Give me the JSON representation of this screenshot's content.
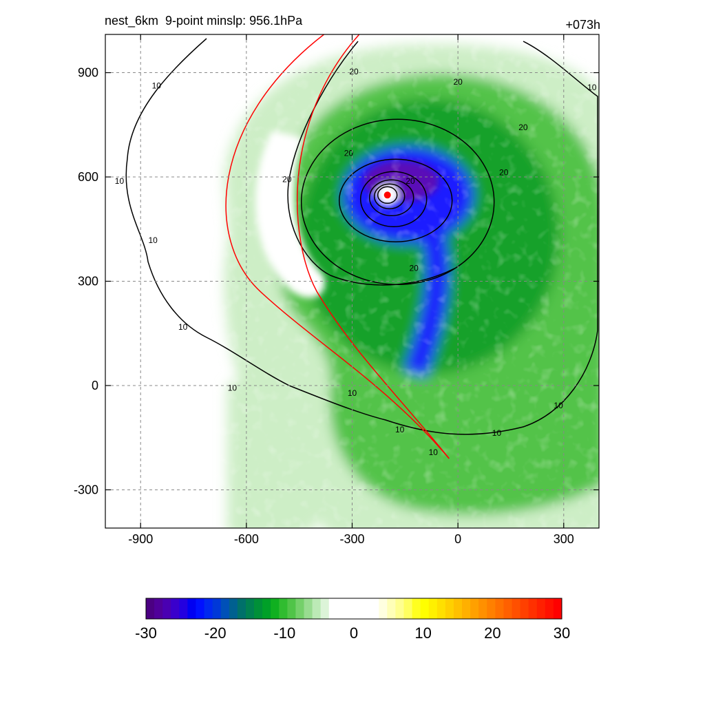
{
  "header": {
    "title": "nest_6km  9-point minslp: 956.1hPa",
    "forecast_hour": "+073h"
  },
  "chart_data": {
    "type": "heatmap",
    "title": "nest_6km  9-point minslp: 956.1hPa",
    "annotation": "+073h",
    "xlim": [
      -1000,
      400
    ],
    "ylim": [
      -410,
      1010
    ],
    "xticks": [
      -900,
      -600,
      -300,
      0,
      300
    ],
    "yticks": [
      -300,
      0,
      300,
      600,
      900
    ],
    "grid": true,
    "center": {
      "x": -200,
      "y": 548
    },
    "contour_labels": [
      {
        "text": "10",
        "x": -855,
        "y": 855
      },
      {
        "text": "10",
        "x": -960,
        "y": 580
      },
      {
        "text": "10",
        "x": -865,
        "y": 410
      },
      {
        "text": "10",
        "x": -780,
        "y": 160
      },
      {
        "text": "10",
        "x": -640,
        "y": -15
      },
      {
        "text": "10",
        "x": -300,
        "y": -30
      },
      {
        "text": "10",
        "x": -165,
        "y": -135
      },
      {
        "text": "10",
        "x": -70,
        "y": -200
      },
      {
        "text": "10",
        "x": 110,
        "y": -145
      },
      {
        "text": "10",
        "x": 285,
        "y": -65
      },
      {
        "text": "10",
        "x": 380,
        "y": 850
      },
      {
        "text": "20",
        "x": -295,
        "y": 895
      },
      {
        "text": "20",
        "x": 0,
        "y": 865
      },
      {
        "text": "20",
        "x": -485,
        "y": 585
      },
      {
        "text": "20",
        "x": -310,
        "y": 660
      },
      {
        "text": "20",
        "x": 185,
        "y": 735
      },
      {
        "text": "20",
        "x": 130,
        "y": 605
      },
      {
        "text": "20",
        "x": -135,
        "y": 580
      },
      {
        "text": "20",
        "x": -125,
        "y": 330
      }
    ],
    "colorbar": {
      "min": -30,
      "max": 30,
      "tick_labels": [
        "-30",
        "-20",
        "-10",
        "0",
        "10",
        "20",
        "30"
      ],
      "colors": [
        "#4b0082",
        "#50009a",
        "#4a00b2",
        "#3a00cc",
        "#2400e0",
        "#0000f2",
        "#0010ff",
        "#0028f0",
        "#0038d8",
        "#0050b8",
        "#006090",
        "#00706a",
        "#008050",
        "#009038",
        "#00a028",
        "#10b020",
        "#30bc30",
        "#50c448",
        "#74d06a",
        "#98dc90",
        "#bceab6",
        "#dcf4d8",
        "#ffffff",
        "#ffffff",
        "#ffffff",
        "#ffffff",
        "#ffffff",
        "#ffffff",
        "#ffffe0",
        "#ffffb8",
        "#ffff90",
        "#ffff60",
        "#ffff20",
        "#ffff00",
        "#fff000",
        "#ffe000",
        "#ffd000",
        "#ffc000",
        "#ffb000",
        "#ffa000",
        "#ff9000",
        "#ff8000",
        "#ff7000",
        "#ff6000",
        "#ff5000",
        "#ff4000",
        "#ff3000",
        "#ff2000",
        "#ff1000",
        "#ff0000"
      ]
    }
  },
  "colors": {
    "track": "#ff0000",
    "contour": "#000000",
    "grid": "#888888",
    "green_light": "#cdeec6",
    "green_mid": "#52c34a",
    "green_dark": "#18a12a",
    "blue": "#1a1aff",
    "purple": "#5a10b8"
  }
}
